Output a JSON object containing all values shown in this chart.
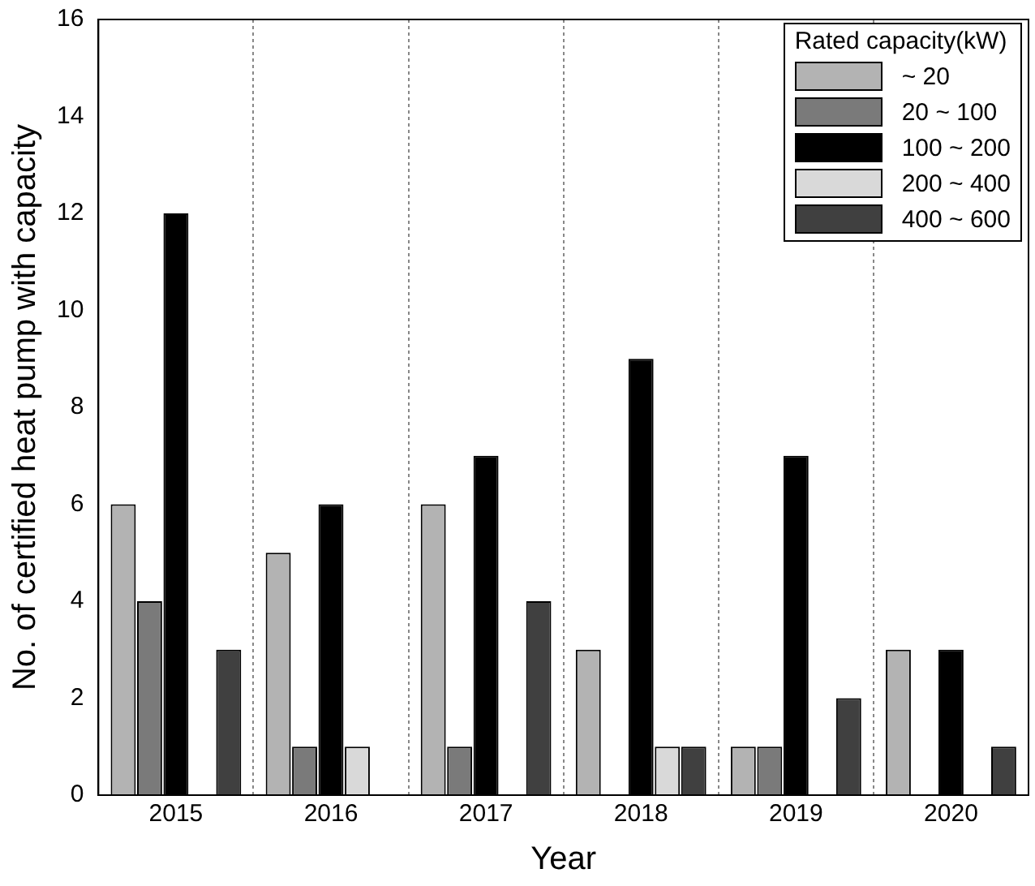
{
  "chart_data": {
    "type": "bar",
    "xlabel": "Year",
    "ylabel": "No. of certified heat pump with capacity",
    "legend_title": "Rated capacity(kW)",
    "categories": [
      "2015",
      "2016",
      "2017",
      "2018",
      "2019",
      "2020"
    ],
    "series": [
      {
        "name": "~ 20",
        "color": "#b3b3b3",
        "values": [
          6,
          5,
          6,
          3,
          1,
          3
        ]
      },
      {
        "name": "20 ~ 100",
        "color": "#7a7a7a",
        "values": [
          4,
          1,
          1,
          0,
          1,
          0
        ]
      },
      {
        "name": "100 ~ 200",
        "color": "#000000",
        "values": [
          12,
          6,
          7,
          9,
          7,
          3
        ]
      },
      {
        "name": "200 ~ 400",
        "color": "#d9d9d9",
        "values": [
          0,
          1,
          0,
          1,
          0,
          0
        ]
      },
      {
        "name": "400 ~ 600",
        "color": "#404040",
        "values": [
          3,
          0,
          4,
          1,
          2,
          1
        ]
      }
    ],
    "ylim": [
      0,
      16
    ],
    "yticks": [
      0,
      2,
      4,
      6,
      8,
      10,
      12,
      14,
      16
    ],
    "grid": "x",
    "legend": "top right"
  }
}
